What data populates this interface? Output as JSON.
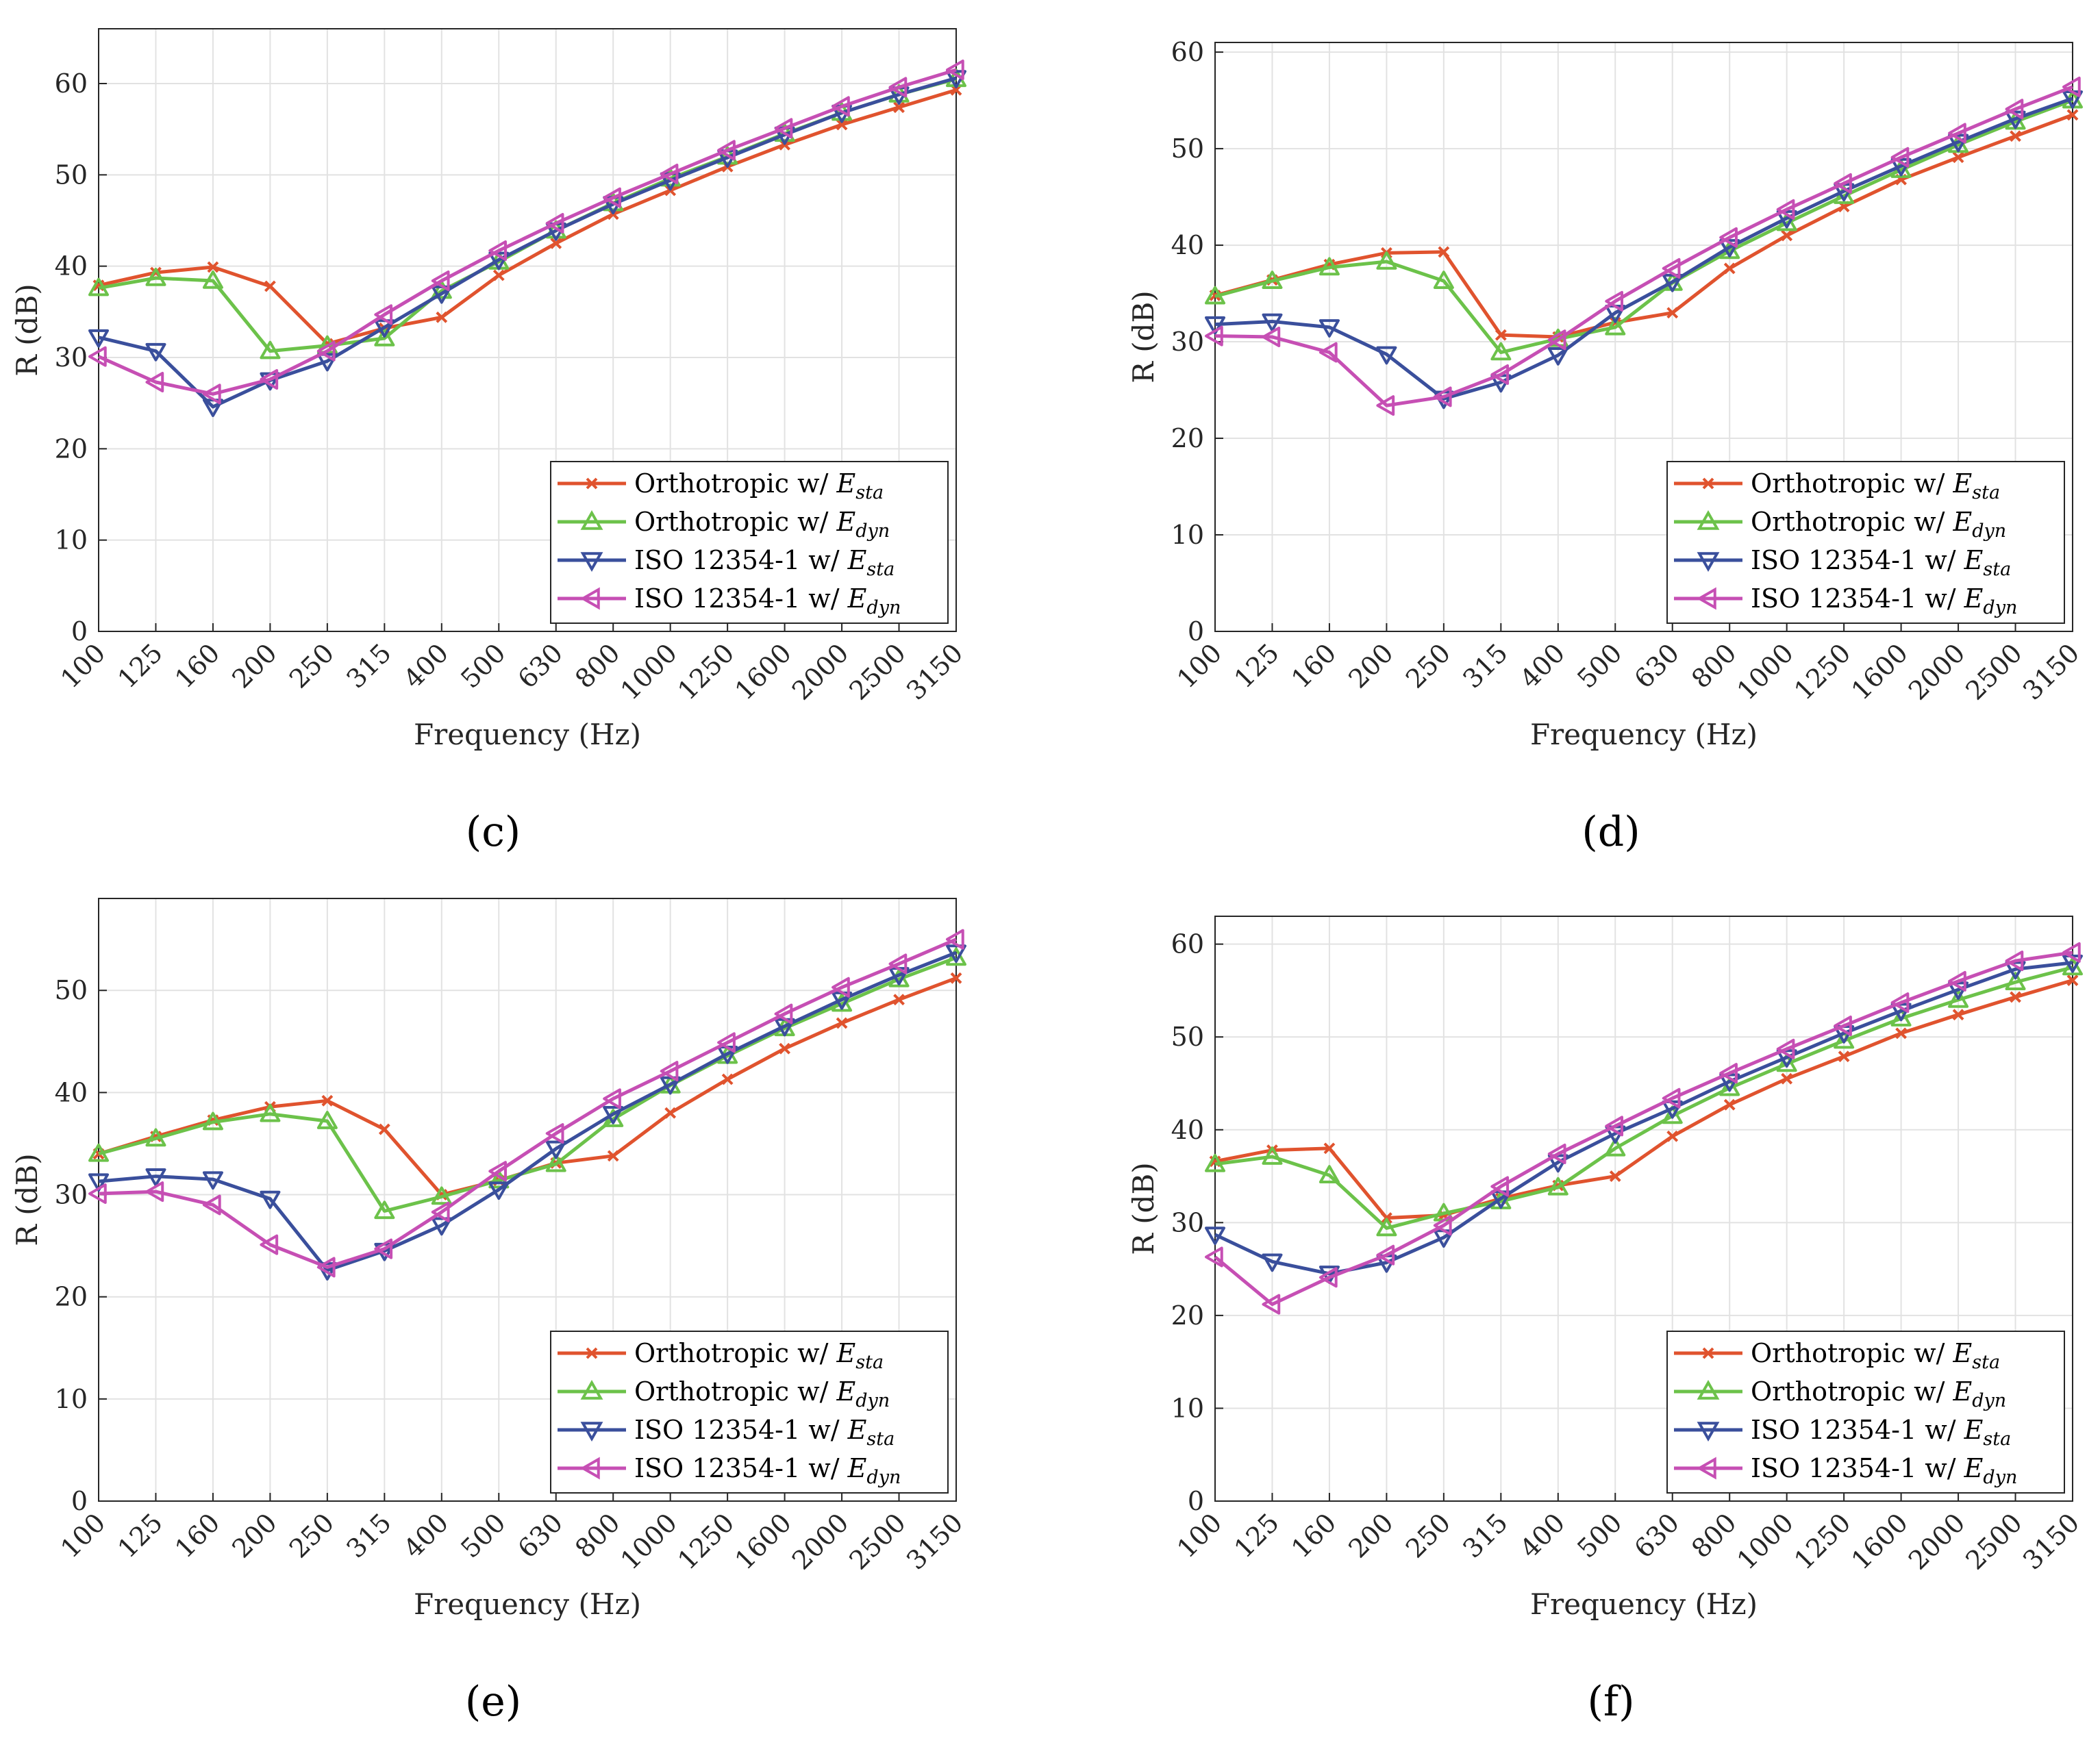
{
  "chart_data": [
    {
      "panel": "c",
      "caption": "(c)",
      "type": "line",
      "categories": [
        "100",
        "125",
        "160",
        "200",
        "250",
        "315",
        "400",
        "500",
        "630",
        "800",
        "1000",
        "1250",
        "1600",
        "2000",
        "2500",
        "3150"
      ],
      "ylim": [
        0,
        66
      ],
      "yticks": [
        0,
        10,
        20,
        30,
        40,
        50,
        60
      ],
      "xlabel": "Frequency (Hz)",
      "ylabel": "R (dB)",
      "grid": true,
      "legend_position": "bottom-right",
      "series": [
        {
          "name": "Orthotropic w/ E_sta",
          "legend_main": "Orthotropic w/",
          "legend_sym": "E",
          "legend_sub": "sta",
          "color": "#e0532e",
          "marker": "x",
          "values": [
            37.9,
            39.3,
            39.9,
            37.8,
            31.5,
            33.2,
            34.4,
            39.0,
            42.5,
            45.7,
            48.3,
            50.9,
            53.3,
            55.5,
            57.4,
            59.3
          ]
        },
        {
          "name": "Orthotropic w/ E_dyn",
          "legend_main": "Orthotropic w/",
          "legend_sym": "E",
          "legend_sub": "dyn",
          "color": "#6cc24a",
          "marker": "tri-up",
          "values": [
            37.6,
            38.7,
            38.4,
            30.7,
            31.3,
            32.1,
            37.3,
            40.5,
            43.9,
            46.9,
            49.6,
            52.0,
            54.5,
            56.8,
            58.8,
            60.5
          ]
        },
        {
          "name": "ISO 12354-1 w/ E_sta",
          "legend_main": "ISO 12354-1 w/",
          "legend_sym": "E",
          "legend_sub": "sta",
          "color": "#3a4f9c",
          "marker": "tri-down",
          "values": [
            32.2,
            30.7,
            24.6,
            27.5,
            29.6,
            33.3,
            37.0,
            40.7,
            43.9,
            46.8,
            49.4,
            51.9,
            54.4,
            56.8,
            58.8,
            60.6
          ]
        },
        {
          "name": "ISO 12354-1 w/ E_dyn",
          "legend_main": "ISO 12354-1 w/",
          "legend_sym": "E",
          "legend_sub": "dyn",
          "color": "#c64fb4",
          "marker": "tri-left",
          "values": [
            30.1,
            27.3,
            26.0,
            27.6,
            30.7,
            34.7,
            38.4,
            41.7,
            44.7,
            47.5,
            50.1,
            52.7,
            55.1,
            57.5,
            59.6,
            61.5
          ]
        }
      ]
    },
    {
      "panel": "d",
      "caption": "(d)",
      "type": "line",
      "categories": [
        "100",
        "125",
        "160",
        "200",
        "250",
        "315",
        "400",
        "500",
        "630",
        "800",
        "1000",
        "1250",
        "1600",
        "2000",
        "2500",
        "3150"
      ],
      "ylim": [
        0,
        61
      ],
      "yticks": [
        0,
        10,
        20,
        30,
        40,
        50,
        60
      ],
      "xlabel": "Frequency (Hz)",
      "ylabel": "R (dB)",
      "grid": true,
      "legend_position": "bottom-right",
      "series": [
        {
          "name": "Orthotropic w/ E_sta",
          "legend_main": "Orthotropic w/",
          "legend_sym": "E",
          "legend_sub": "sta",
          "color": "#e0532e",
          "marker": "x",
          "values": [
            34.8,
            36.4,
            38.0,
            39.2,
            39.3,
            30.7,
            30.5,
            32.0,
            33.0,
            37.6,
            41.0,
            44.0,
            46.8,
            49.1,
            51.3,
            53.5
          ]
        },
        {
          "name": "Orthotropic w/ E_dyn",
          "legend_main": "Orthotropic w/",
          "legend_sym": "E",
          "legend_sub": "dyn",
          "color": "#6cc24a",
          "marker": "tri-up",
          "values": [
            34.7,
            36.3,
            37.7,
            38.3,
            36.3,
            28.9,
            30.3,
            31.5,
            36.1,
            39.4,
            42.3,
            45.1,
            47.8,
            50.4,
            52.8,
            55.0
          ]
        },
        {
          "name": "ISO 12354-1 w/ E_sta",
          "legend_main": "ISO 12354-1 w/",
          "legend_sym": "E",
          "legend_sub": "sta",
          "color": "#3a4f9c",
          "marker": "tri-down",
          "values": [
            31.8,
            32.1,
            31.5,
            28.7,
            24.1,
            25.8,
            28.6,
            33.0,
            36.2,
            39.8,
            42.8,
            45.6,
            48.2,
            50.7,
            53.1,
            55.2
          ]
        },
        {
          "name": "ISO 12354-1 w/ E_dyn",
          "legend_main": "ISO 12354-1 w/",
          "legend_sym": "E",
          "legend_sub": "dyn",
          "color": "#c64fb4",
          "marker": "tri-left",
          "values": [
            30.6,
            30.5,
            28.9,
            23.4,
            24.3,
            26.6,
            30.2,
            34.2,
            37.6,
            40.8,
            43.7,
            46.4,
            49.1,
            51.6,
            54.1,
            56.4
          ]
        }
      ]
    },
    {
      "panel": "e",
      "caption": "(e)",
      "type": "line",
      "categories": [
        "100",
        "125",
        "160",
        "200",
        "250",
        "315",
        "400",
        "500",
        "630",
        "800",
        "1000",
        "1250",
        "1600",
        "2000",
        "2500",
        "3150"
      ],
      "ylim": [
        0,
        59
      ],
      "yticks": [
        0,
        10,
        20,
        30,
        40,
        50
      ],
      "xlabel": "Frequency (Hz)",
      "ylabel": "R (dB)",
      "grid": true,
      "legend_position": "bottom-right",
      "series": [
        {
          "name": "Orthotropic w/ E_sta",
          "legend_main": "Orthotropic w/",
          "legend_sym": "E",
          "legend_sub": "sta",
          "color": "#e0532e",
          "marker": "x",
          "values": [
            34.0,
            35.7,
            37.3,
            38.6,
            39.2,
            36.4,
            30.0,
            31.4,
            33.1,
            33.8,
            38.0,
            41.3,
            44.3,
            46.8,
            49.1,
            51.2
          ]
        },
        {
          "name": "Orthotropic w/ E_dyn",
          "legend_main": "Orthotropic w/",
          "legend_sym": "E",
          "legend_sub": "dyn",
          "color": "#6cc24a",
          "marker": "tri-up",
          "values": [
            34.0,
            35.5,
            37.1,
            37.9,
            37.2,
            28.4,
            29.8,
            31.4,
            33.0,
            37.4,
            40.7,
            43.6,
            46.3,
            48.7,
            51.1,
            53.2
          ]
        },
        {
          "name": "ISO 12354-1 w/ E_sta",
          "legend_main": "ISO 12354-1 w/",
          "legend_sym": "E",
          "legend_sub": "sta",
          "color": "#3a4f9c",
          "marker": "tri-down",
          "values": [
            31.3,
            31.8,
            31.5,
            29.6,
            22.6,
            24.5,
            27.0,
            30.5,
            34.5,
            37.9,
            40.8,
            43.8,
            46.5,
            49.1,
            51.5,
            53.7
          ]
        },
        {
          "name": "ISO 12354-1 w/ E_dyn",
          "legend_main": "ISO 12354-1 w/",
          "legend_sym": "E",
          "legend_sub": "dyn",
          "color": "#c64fb4",
          "marker": "tri-left",
          "values": [
            30.1,
            30.3,
            29.0,
            25.1,
            22.9,
            24.7,
            28.3,
            32.3,
            36.0,
            39.4,
            42.1,
            44.9,
            47.7,
            50.3,
            52.6,
            55.0
          ]
        }
      ]
    },
    {
      "panel": "f",
      "caption": "(f)",
      "type": "line",
      "categories": [
        "100",
        "125",
        "160",
        "200",
        "250",
        "315",
        "400",
        "500",
        "630",
        "800",
        "1000",
        "1250",
        "1600",
        "2000",
        "2500",
        "3150"
      ],
      "ylim": [
        0,
        63
      ],
      "yticks": [
        0,
        10,
        20,
        30,
        40,
        50,
        60
      ],
      "xlabel": "Frequency (Hz)",
      "ylabel": "R (dB)",
      "grid": true,
      "legend_position": "bottom-right",
      "series": [
        {
          "name": "Orthotropic w/ E_sta",
          "legend_main": "Orthotropic w/",
          "legend_sym": "E",
          "legend_sub": "sta",
          "color": "#e0532e",
          "marker": "x",
          "values": [
            36.6,
            37.8,
            38.0,
            30.5,
            30.8,
            32.6,
            34.0,
            35.0,
            39.3,
            42.7,
            45.5,
            47.9,
            50.4,
            52.4,
            54.3,
            56.1
          ]
        },
        {
          "name": "Orthotropic w/ E_dyn",
          "legend_main": "Orthotropic w/",
          "legend_sym": "E",
          "legend_sub": "dyn",
          "color": "#6cc24a",
          "marker": "tri-up",
          "values": [
            36.3,
            37.1,
            35.1,
            29.4,
            31.0,
            32.3,
            33.8,
            38.0,
            41.5,
            44.5,
            47.1,
            49.6,
            52.0,
            54.0,
            55.9,
            57.5
          ]
        },
        {
          "name": "ISO 12354-1 w/ E_sta",
          "legend_main": "ISO 12354-1 w/",
          "legend_sym": "E",
          "legend_sub": "sta",
          "color": "#3a4f9c",
          "marker": "tri-down",
          "values": [
            28.7,
            25.8,
            24.5,
            25.7,
            28.4,
            32.6,
            36.5,
            39.6,
            42.3,
            45.2,
            47.8,
            50.4,
            52.8,
            55.1,
            57.3,
            58.0
          ]
        },
        {
          "name": "ISO 12354-1 w/ E_dyn",
          "legend_main": "ISO 12354-1 w/",
          "legend_sym": "E",
          "legend_sub": "dyn",
          "color": "#c64fb4",
          "marker": "tri-left",
          "values": [
            26.3,
            21.2,
            24.1,
            26.5,
            29.7,
            33.9,
            37.4,
            40.4,
            43.4,
            46.1,
            48.7,
            51.2,
            53.7,
            56.0,
            58.2,
            59.1
          ]
        }
      ]
    }
  ]
}
